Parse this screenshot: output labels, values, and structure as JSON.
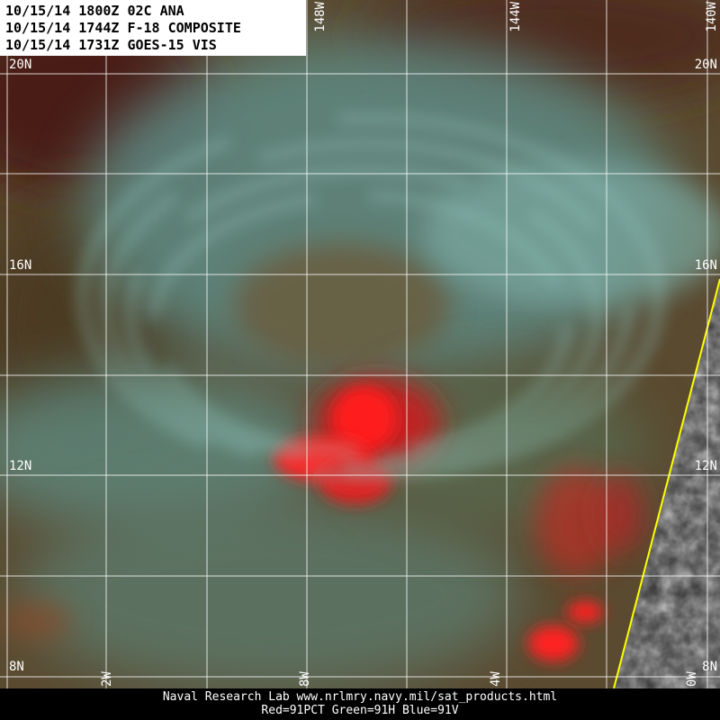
{
  "header": {
    "lines": [
      "10/15/14 1800Z 02C ANA",
      "10/15/14 1744Z F-18 COMPOSITE",
      "10/15/14 1731Z GOES-15 VIS"
    ]
  },
  "grid": {
    "lat_labels": [
      "20N",
      "16N",
      "12N",
      "8N"
    ],
    "lon_labels_top": [
      "148W",
      "144W",
      "140W"
    ],
    "lon_labels_bottom": [
      "2W",
      "8W",
      "4W",
      "0W"
    ]
  },
  "footer": {
    "lines": [
      "Naval Research Lab  www.nrlmry.navy.mil/sat_products.html",
      "Red=91PCT  Green=91H  Blue=91V"
    ]
  }
}
